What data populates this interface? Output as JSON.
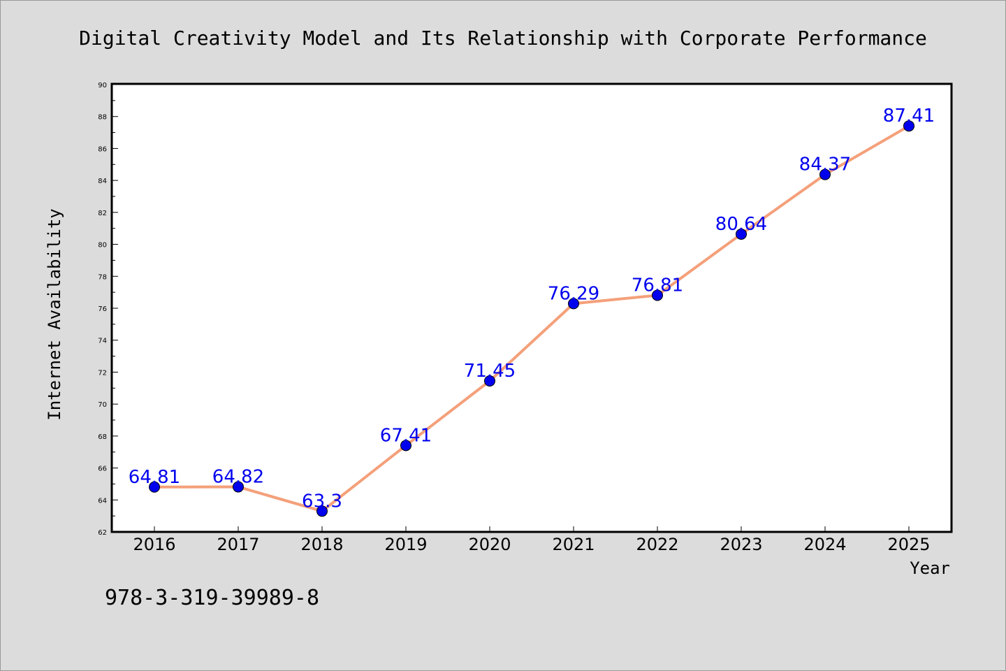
{
  "chart_data": {
    "type": "line",
    "title": "Digital Creativity Model and Its Relationship with Corporate Performance",
    "xlabel": "Year",
    "ylabel": "Internet Availability",
    "categories": [
      "2016",
      "2017",
      "2018",
      "2019",
      "2020",
      "2021",
      "2022",
      "2023",
      "2024",
      "2025"
    ],
    "series": [
      {
        "values": [
          64.81,
          64.82,
          63.3,
          67.41,
          71.45,
          76.29,
          76.81,
          80.64,
          84.37,
          87.41
        ],
        "labels": [
          "64.81",
          "64.82",
          "63.3",
          "67.41",
          "71.45",
          "76.29",
          "76.81",
          "80.64",
          "84.37",
          "87.41"
        ]
      }
    ],
    "ylim": [
      62,
      90
    ],
    "yticks": [
      "62",
      "64",
      "66",
      "68",
      "70",
      "72",
      "74",
      "76",
      "78",
      "80",
      "82",
      "84",
      "86",
      "88",
      "90"
    ],
    "grid": false,
    "legend": "none",
    "colors": {
      "line": "#f4a07a",
      "marker": "#0000ee",
      "label": "#0000ee",
      "background": "#dcdcdc",
      "plot_background": "#ffffff"
    }
  },
  "footnote": "978-3-319-39989-8"
}
